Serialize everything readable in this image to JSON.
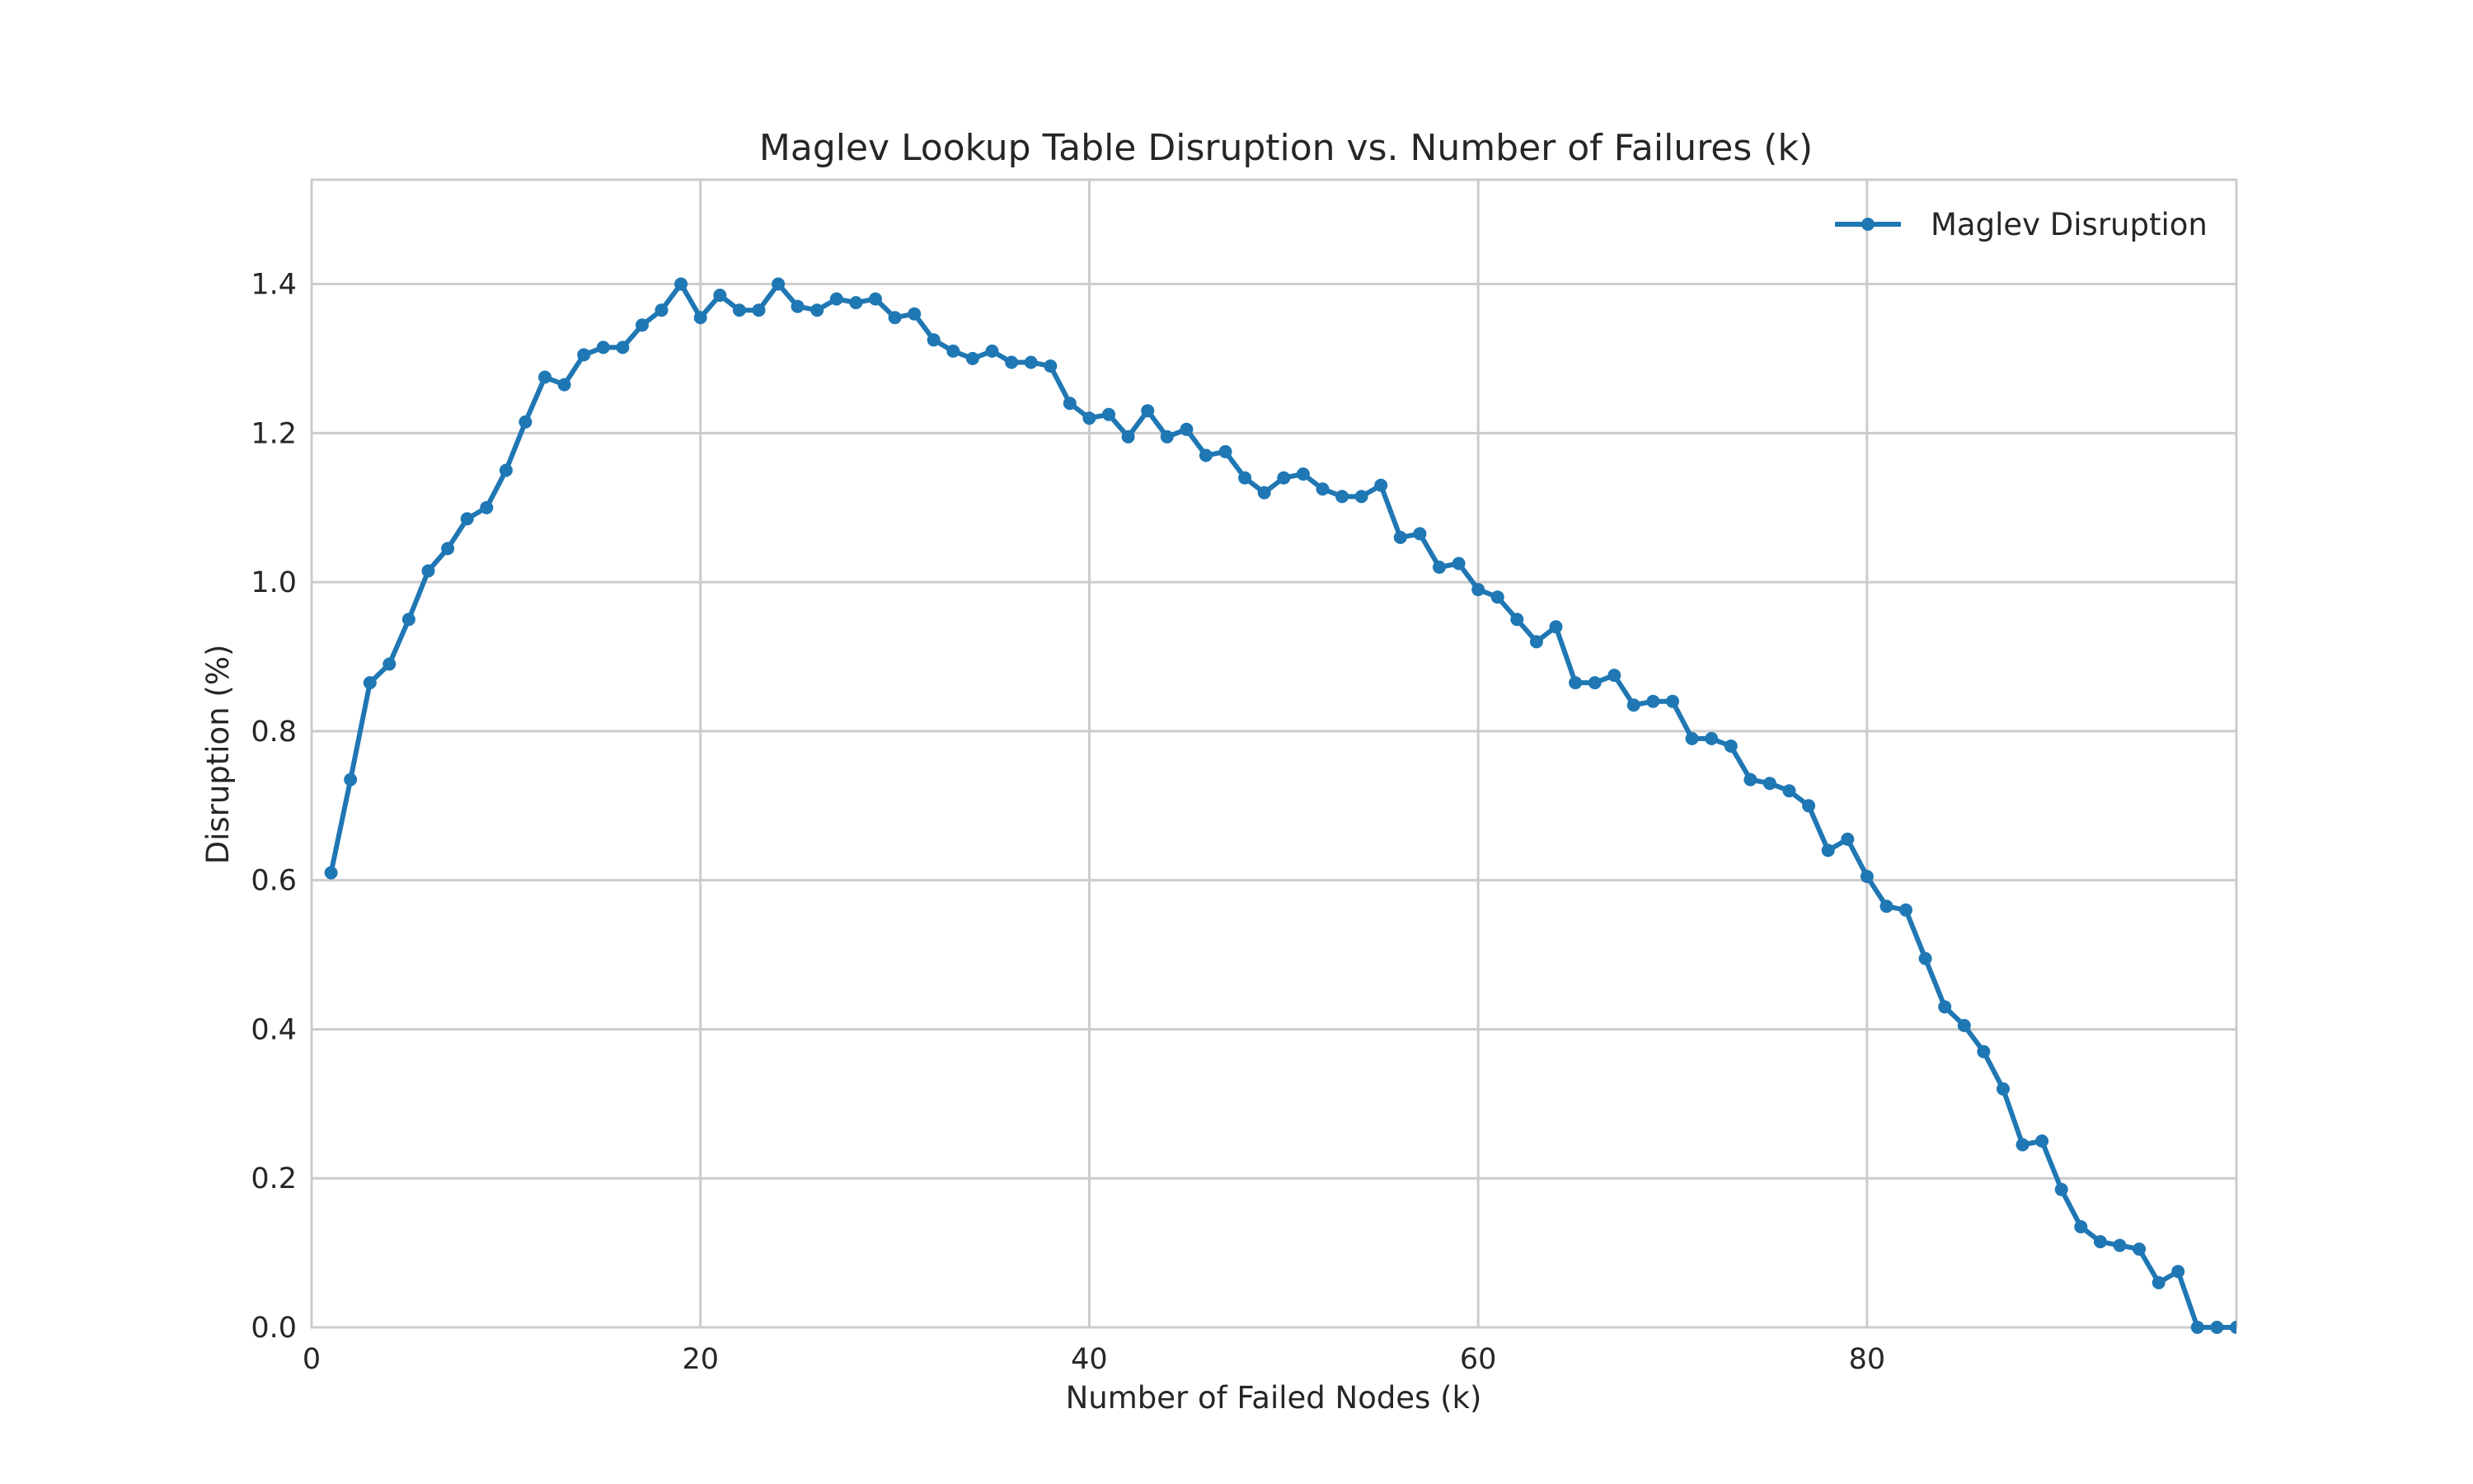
{
  "chart_data": {
    "type": "line",
    "title": "Maglev Lookup Table Disruption vs. Number of Failures (k)",
    "xlabel": "Number of Failed Nodes (k)",
    "ylabel": "Disruption (%)",
    "xlim": [
      0,
      99
    ],
    "ylim": [
      0,
      1.54
    ],
    "xticks": [
      0,
      20,
      40,
      60,
      80
    ],
    "yticks": [
      0.0,
      0.2,
      0.4,
      0.6,
      0.8,
      1.0,
      1.2,
      1.4
    ],
    "xtick_labels": [
      "0",
      "20",
      "40",
      "60",
      "80"
    ],
    "ytick_labels": [
      "0.0",
      "0.2",
      "0.4",
      "0.6",
      "0.8",
      "1.0",
      "1.2",
      "1.4"
    ],
    "grid": true,
    "legend_position": "top-right",
    "series": [
      {
        "name": "Maglev Disruption",
        "color": "#1f77b4",
        "marker": "circle",
        "x": [
          1,
          2,
          3,
          4,
          5,
          6,
          7,
          8,
          9,
          10,
          11,
          12,
          13,
          14,
          15,
          16,
          17,
          18,
          19,
          20,
          21,
          22,
          23,
          24,
          25,
          26,
          27,
          28,
          29,
          30,
          31,
          32,
          33,
          34,
          35,
          36,
          37,
          38,
          39,
          40,
          41,
          42,
          43,
          44,
          45,
          46,
          47,
          48,
          49,
          50,
          51,
          52,
          53,
          54,
          55,
          56,
          57,
          58,
          59,
          60,
          61,
          62,
          63,
          64,
          65,
          66,
          67,
          68,
          69,
          70,
          71,
          72,
          73,
          74,
          75,
          76,
          77,
          78,
          79,
          80,
          81,
          82,
          83,
          84,
          85,
          86,
          87,
          88,
          89,
          90,
          91,
          92,
          93,
          94,
          95,
          96,
          97,
          98,
          99
        ],
        "y": [
          0.61,
          0.735,
          0.865,
          0.89,
          0.95,
          1.015,
          1.045,
          1.085,
          1.1,
          1.15,
          1.215,
          1.275,
          1.265,
          1.305,
          1.315,
          1.315,
          1.345,
          1.365,
          1.4,
          1.355,
          1.385,
          1.365,
          1.365,
          1.4,
          1.37,
          1.365,
          1.38,
          1.375,
          1.38,
          1.355,
          1.36,
          1.325,
          1.31,
          1.3,
          1.31,
          1.295,
          1.295,
          1.29,
          1.24,
          1.22,
          1.225,
          1.195,
          1.23,
          1.195,
          1.205,
          1.17,
          1.175,
          1.14,
          1.12,
          1.14,
          1.145,
          1.125,
          1.115,
          1.115,
          1.13,
          1.06,
          1.065,
          1.02,
          1.025,
          0.99,
          0.98,
          0.95,
          0.92,
          0.94,
          0.865,
          0.865,
          0.875,
          0.835,
          0.84,
          0.84,
          0.79,
          0.79,
          0.78,
          0.735,
          0.73,
          0.72,
          0.7,
          0.64,
          0.655,
          0.605,
          0.565,
          0.56,
          0.495,
          0.43,
          0.405,
          0.37,
          0.32,
          0.245,
          0.25,
          0.185,
          0.135,
          0.115,
          0.11,
          0.105,
          0.06,
          0.075,
          0.0,
          0.0,
          0.0
        ]
      }
    ]
  }
}
